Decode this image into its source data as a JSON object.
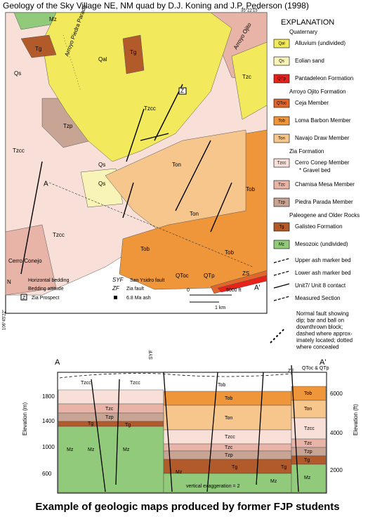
{
  "title": "Geology of the Sky Village NE, NM quad by D.J. Koning and J.P. Pederson (1998)",
  "coords": {
    "top_right": "35°22'15\"",
    "left": "106°45'22\""
  },
  "explanation": {
    "heading": "EXPLANATION",
    "groups": [
      {
        "name": "Quaternary",
        "units": [
          {
            "code": "Qal",
            "name": "Alluvium (undivided)",
            "color": "#f2ea5c"
          },
          {
            "code": "Qs",
            "name": "Eolian sand",
            "color": "#f8f4b8"
          },
          {
            "code": "QTp",
            "name": "Pantadeleon Formation",
            "color": "#e8221a"
          }
        ]
      },
      {
        "name": "Arroyo Ojito Formation",
        "units": [
          {
            "code": "QToc",
            "name": "Ceja Member",
            "color": "#e2662a"
          },
          {
            "code": "Tob",
            "name": "Loma Barbon Member",
            "color": "#f0963a"
          },
          {
            "code": "Ton",
            "name": "Navajo Draw Member",
            "color": "#f6c68c"
          }
        ]
      },
      {
        "name": "Zia Formation",
        "units": [
          {
            "code": "Tzcc",
            "name": "Cerro Conep Member",
            "color": "#f8e0d8",
            "note": "* Gravel bed"
          },
          {
            "code": "Tzc",
            "name": "Chamisa Mesa Member",
            "color": "#e8b4a8"
          },
          {
            "code": "Tzp",
            "name": "Piedra Parada Member",
            "color": "#c8a494"
          }
        ]
      },
      {
        "name": "Paleogene and Older Rocks",
        "units": [
          {
            "code": "Tg",
            "name": "Galisteo Formation",
            "color": "#b25a2a"
          },
          {
            "code": "Mz",
            "name": "Mesozoic (undivided)",
            "color": "#92ca7c"
          }
        ]
      }
    ],
    "symbols": [
      "Upper ash marker bed",
      "Lower ash marker bed",
      "Unit7/ Unit 8 contact",
      "Measured Section"
    ],
    "fault_note": [
      "Normal fault showing",
      "dip; bar and ball on",
      "downthrown block;",
      "dashed where approx-",
      "imately located; dotted",
      "where concealed"
    ]
  },
  "map_labels": [
    "Mz",
    "Tg",
    "Qs",
    "Qal",
    "Arroyo Piedra Parada",
    "Tzp",
    "Tzcc",
    "Tzc",
    "Ton",
    "Tob",
    "Tzcc",
    "Qs",
    "Tzcc",
    "Ton",
    "Tob",
    "Tob",
    "QToc",
    "QTp",
    "ZS",
    "A",
    "A'",
    "Cerro Conejo",
    "Z",
    "Tg",
    "Qs",
    "Arroyo Ojito"
  ],
  "map_key": {
    "horizontal": "Horizontal bedding",
    "attitude": "Bedding attitude",
    "zia_mark": "Z",
    "zia": "Zia Prospect",
    "syf_code": "SYF",
    "syf": "San Ysidro fault",
    "zf_code": "ZF",
    "zf": "Zia fault",
    "ash": "6.8 Ma ash",
    "north": "N"
  },
  "scale": {
    "zero": "0",
    "ft": "5000 ft",
    "km": "1 km"
  },
  "section": {
    "ends": [
      "A",
      "A'"
    ],
    "faults": [
      "SYF",
      "ZF"
    ],
    "left_axis": "Elevation (m)",
    "left_ticks": [
      "1800",
      "1400",
      "1000",
      "600"
    ],
    "right_axis": "Elevation (ft)",
    "right_ticks": [
      "6000",
      "4000",
      "2000"
    ],
    "exaggeration": "vertical exaggeration = 2",
    "top_note": "QToc & QTp",
    "labels": [
      "Tob",
      "Tzcc",
      "Tzcc",
      "Tzc",
      "Tzp",
      "Tg",
      "Mz",
      "Mz",
      "Mz",
      "Tob",
      "Ton",
      "Tzcc",
      "Tzc",
      "Tzp",
      "Tg",
      "Mz",
      "Tg",
      "Mz",
      "Tob",
      "Ton",
      "Tzcc",
      "Tzc",
      "Tzp",
      "Tg",
      "Mz",
      "Tg"
    ]
  },
  "caption": "Example of geologic maps produced by former FJP students"
}
